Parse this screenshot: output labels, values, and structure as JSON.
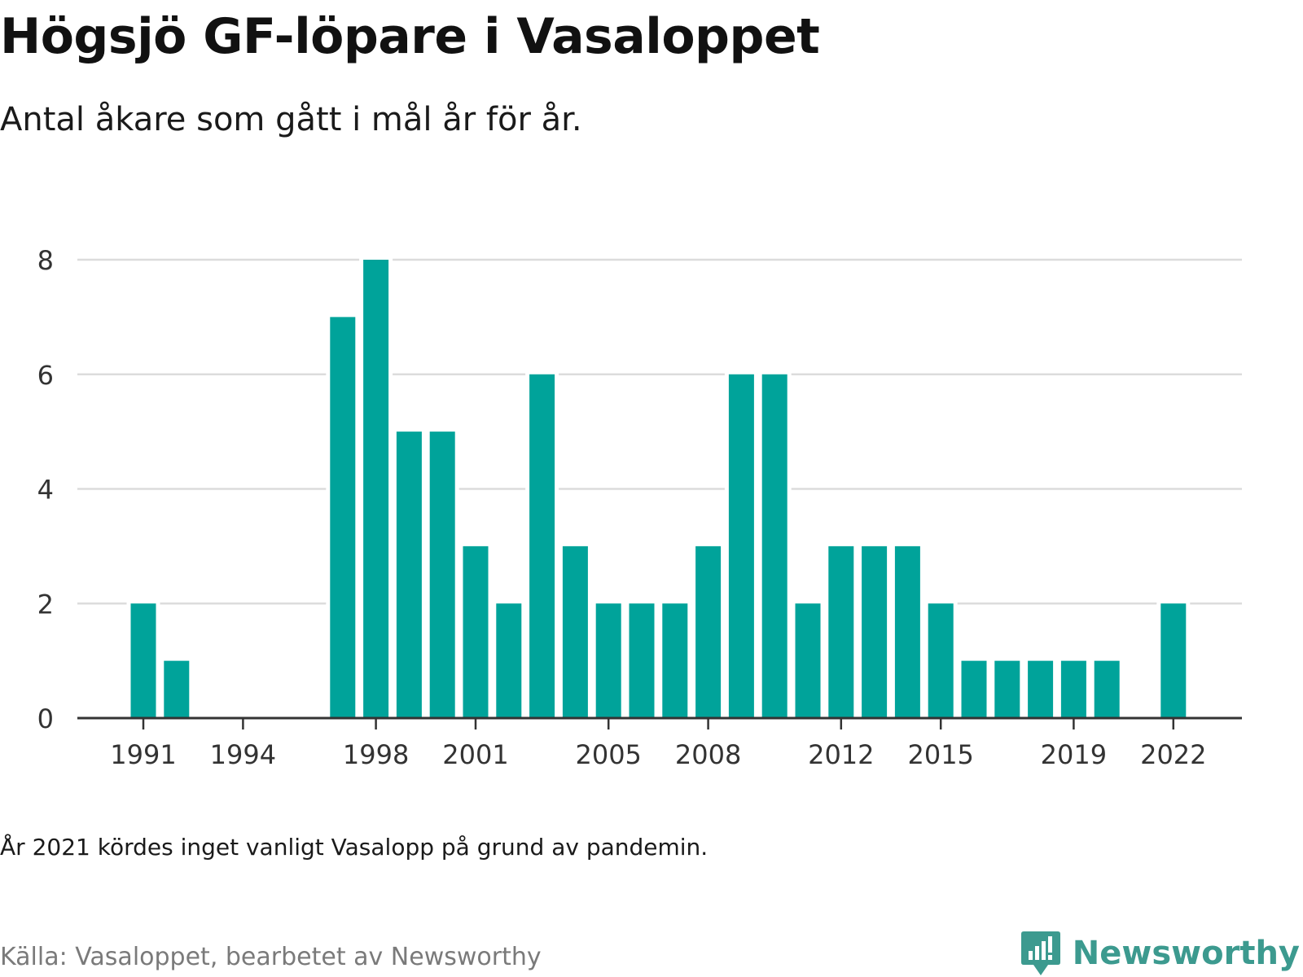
{
  "header": {
    "title": "Högsjö GF-löpare i Vasaloppet",
    "subtitle": "Antal åkare som gått i mål år för år."
  },
  "footer": {
    "note": "År 2021 kördes inget vanligt Vasalopp på grund av pandemin.",
    "source": "Källa: Vasaloppet, bearbetet av Newsworthy",
    "brand": "Newsworthy",
    "brand_icon": "newsworthy-logo-icon"
  },
  "colors": {
    "bar": "#00a39a",
    "grid": "#dcdcdc",
    "axis": "#333333",
    "brand": "#3c9a8f"
  },
  "chart_data": {
    "type": "bar",
    "title": "Högsjö GF-löpare i Vasaloppet",
    "subtitle": "Antal åkare som gått i mål år för år.",
    "xlabel": "",
    "ylabel": "",
    "ylim": [
      0,
      8
    ],
    "yticks": [
      0,
      2,
      4,
      6,
      8
    ],
    "xticks": [
      1991,
      1994,
      1998,
      2001,
      2005,
      2008,
      2012,
      2015,
      2019,
      2022
    ],
    "grid": true,
    "legend": "none",
    "x": [
      1991,
      1992,
      1997,
      1998,
      1999,
      2000,
      2001,
      2002,
      2003,
      2004,
      2005,
      2006,
      2007,
      2008,
      2009,
      2010,
      2011,
      2012,
      2013,
      2014,
      2015,
      2016,
      2017,
      2018,
      2019,
      2020,
      2022
    ],
    "values": [
      2,
      1,
      7,
      8,
      5,
      5,
      3,
      2,
      6,
      3,
      2,
      2,
      2,
      3,
      6,
      6,
      2,
      3,
      3,
      3,
      2,
      1,
      1,
      1,
      1,
      1,
      2
    ]
  }
}
